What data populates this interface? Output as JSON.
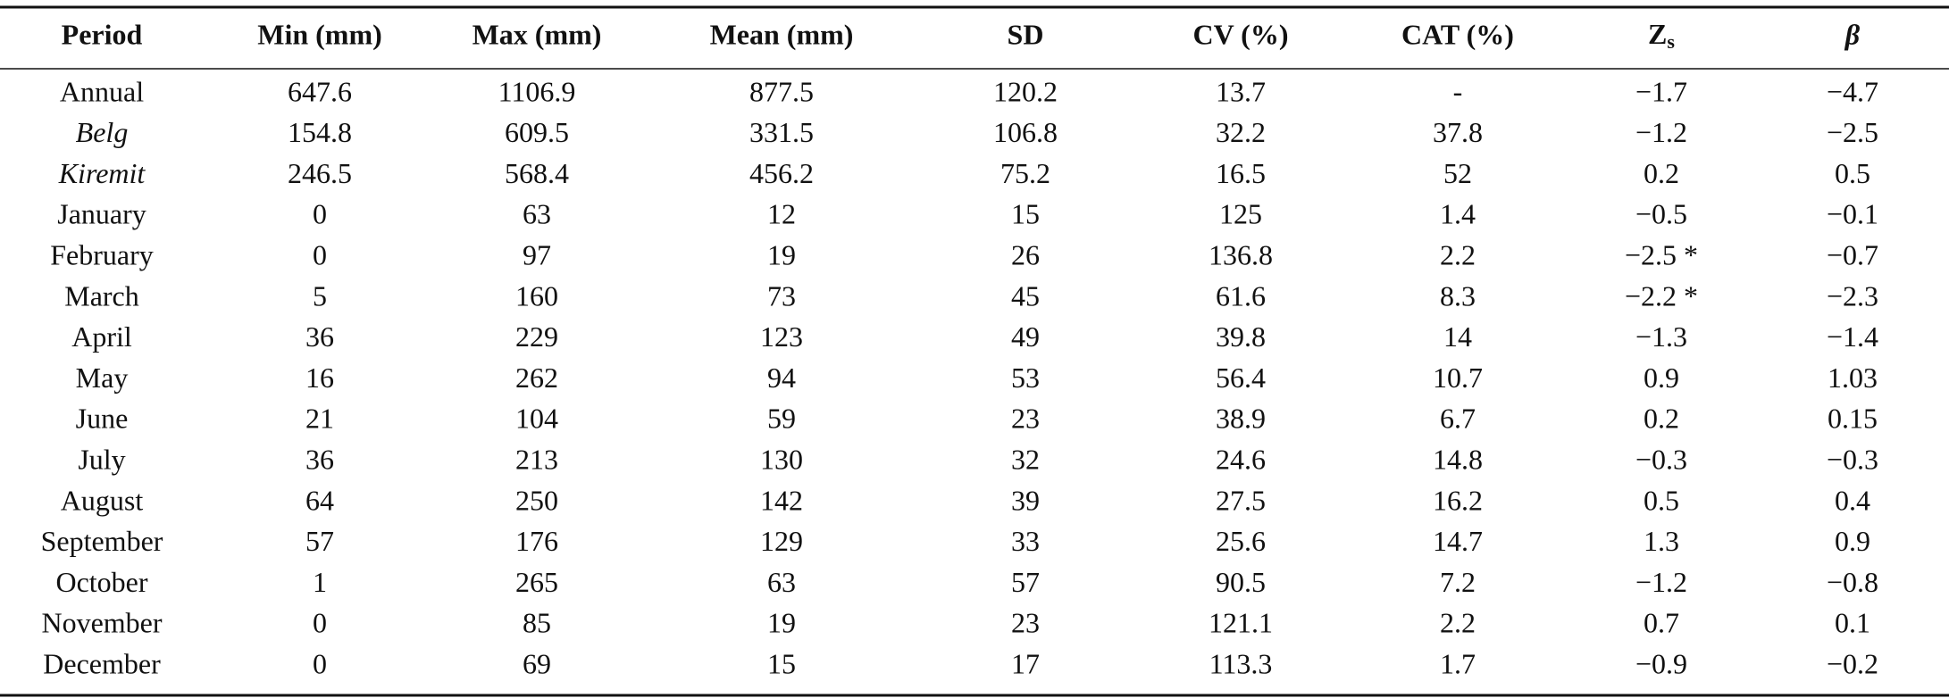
{
  "table": {
    "headers": [
      "Period",
      "Min (mm)",
      "Max (mm)",
      "Mean (mm)",
      "SD",
      "CV (%)",
      "CAT (%)",
      {
        "text": "Z",
        "sub": "s"
      },
      "β"
    ],
    "italic_rows": [
      1,
      2
    ],
    "rows": [
      [
        "Annual",
        "647.6",
        "1106.9",
        "877.5",
        "120.2",
        "13.7",
        "-",
        "−1.7",
        "−4.7"
      ],
      [
        "Belg",
        "154.8",
        "609.5",
        "331.5",
        "106.8",
        "32.2",
        "37.8",
        "−1.2",
        "−2.5"
      ],
      [
        "Kiremit",
        "246.5",
        "568.4",
        "456.2",
        "75.2",
        "16.5",
        "52",
        "0.2",
        "0.5"
      ],
      [
        "January",
        "0",
        "63",
        "12",
        "15",
        "125",
        "1.4",
        "−0.5",
        "−0.1"
      ],
      [
        "February",
        "0",
        "97",
        "19",
        "26",
        "136.8",
        "2.2",
        "−2.5 *",
        "−0.7"
      ],
      [
        "March",
        "5",
        "160",
        "73",
        "45",
        "61.6",
        "8.3",
        "−2.2 *",
        "−2.3"
      ],
      [
        "April",
        "36",
        "229",
        "123",
        "49",
        "39.8",
        "14",
        "−1.3",
        "−1.4"
      ],
      [
        "May",
        "16",
        "262",
        "94",
        "53",
        "56.4",
        "10.7",
        "0.9",
        "1.03"
      ],
      [
        "June",
        "21",
        "104",
        "59",
        "23",
        "38.9",
        "6.7",
        "0.2",
        "0.15"
      ],
      [
        "July",
        "36",
        "213",
        "130",
        "32",
        "24.6",
        "14.8",
        "−0.3",
        "−0.3"
      ],
      [
        "August",
        "64",
        "250",
        "142",
        "39",
        "27.5",
        "16.2",
        "0.5",
        "0.4"
      ],
      [
        "September",
        "57",
        "176",
        "129",
        "33",
        "25.6",
        "14.7",
        "1.3",
        "0.9"
      ],
      [
        "October",
        "1",
        "265",
        "63",
        "57",
        "90.5",
        "7.2",
        "−1.2",
        "−0.8"
      ],
      [
        "November",
        "0",
        "85",
        "19",
        "23",
        "121.1",
        "2.2",
        "0.7",
        "0.1"
      ],
      [
        "December",
        "0",
        "69",
        "15",
        "17",
        "113.3",
        "1.7",
        "−0.9",
        "−0.2"
      ]
    ]
  }
}
